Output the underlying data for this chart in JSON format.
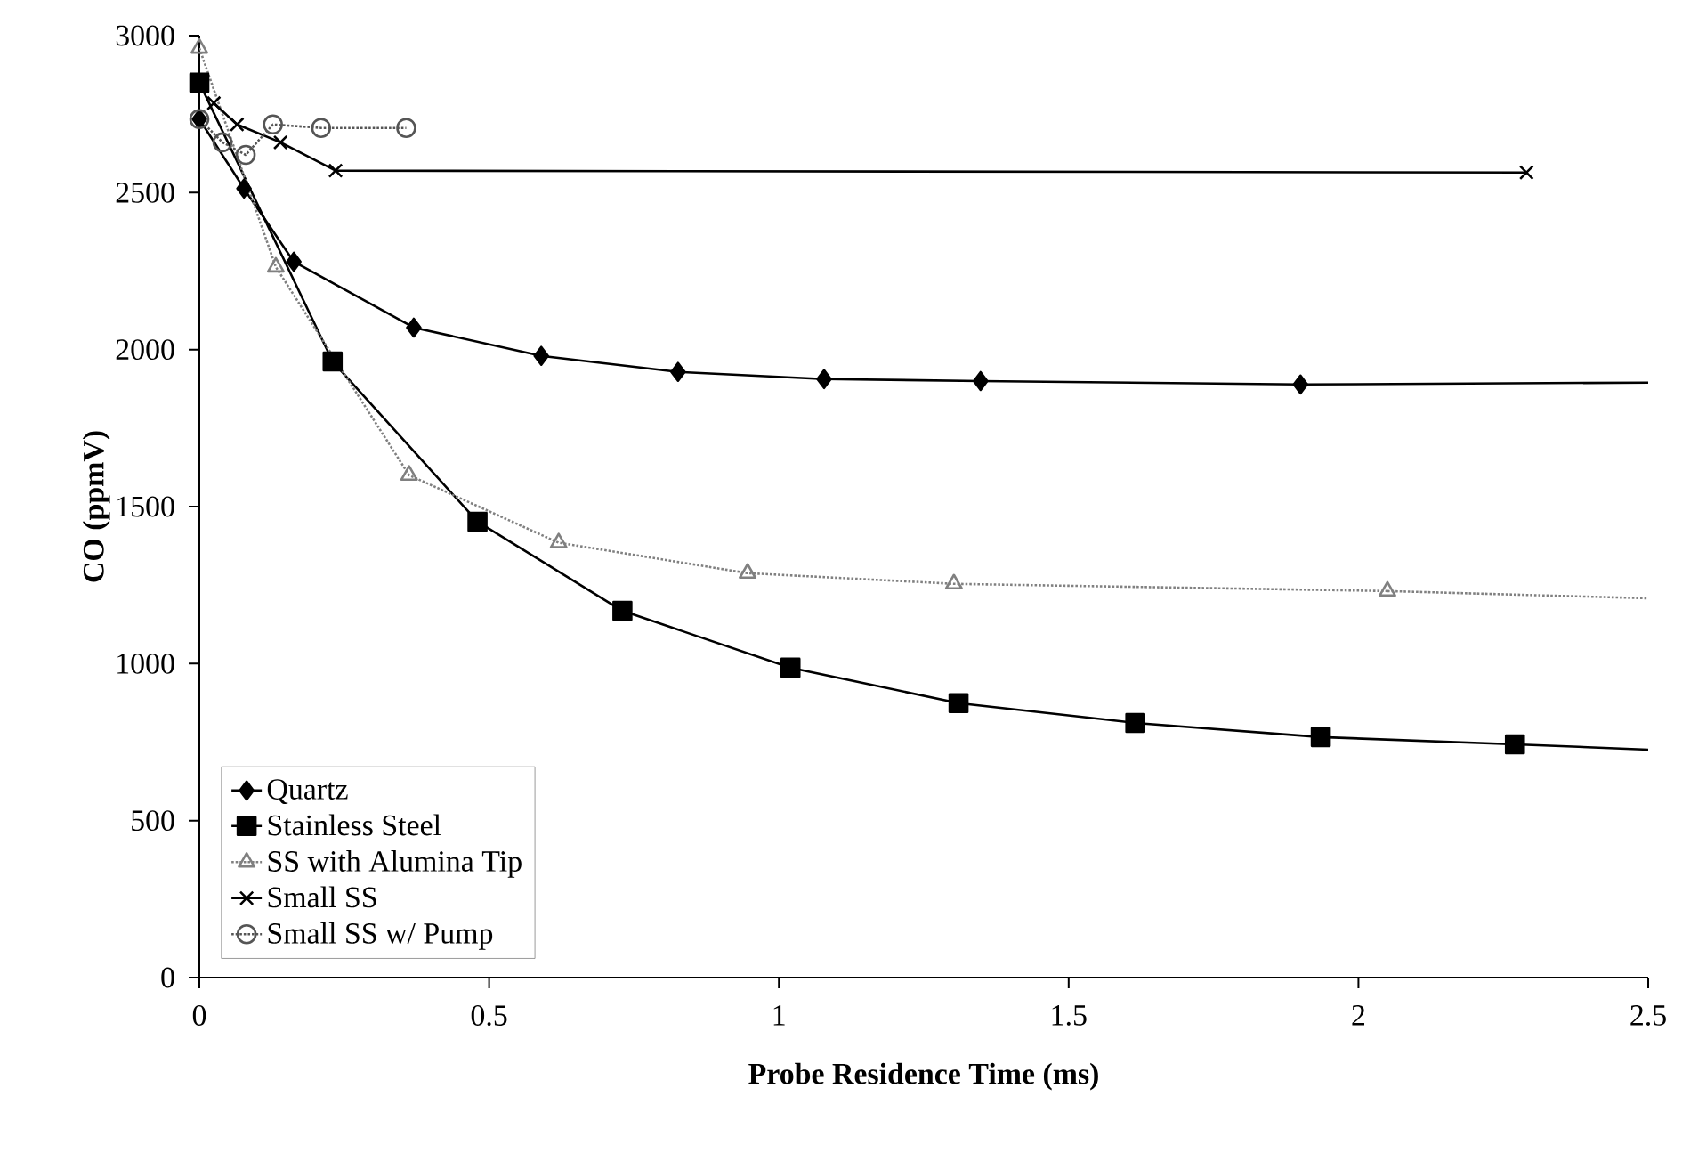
{
  "chart_data": {
    "type": "line",
    "xlabel": "Probe Residence Time (ms)",
    "ylabel": "CO (ppmV)",
    "xlim": [
      0,
      2.5
    ],
    "xticks": [
      0,
      0.5,
      1,
      1.5,
      2,
      2.5
    ],
    "ylim": [
      0,
      3000
    ],
    "yticks": [
      0,
      500,
      1000,
      1500,
      2000,
      2500,
      3000
    ],
    "grid": false,
    "legend": "bottom left",
    "series": [
      {
        "name": "Quartz",
        "color": "#000000",
        "marker": "diamond",
        "line_style": "solid",
        "x": [
          0,
          0.077,
          0.163,
          0.37,
          0.59,
          0.826,
          1.078,
          1.348,
          1.9
        ],
        "values": [
          2734,
          2513,
          2280,
          2070,
          1980,
          1929,
          1906,
          1900,
          1889
        ]
      },
      {
        "name": "Stainless Steel",
        "color": "#000000",
        "marker": "square",
        "line_style": "solid",
        "x": [
          0,
          0.23,
          0.48,
          0.73,
          1.02,
          1.31,
          1.615,
          1.935,
          2.27
        ],
        "values": [
          2850,
          1962,
          1452,
          1168,
          987,
          874,
          811,
          766,
          743
        ]
      },
      {
        "name": "SS with Alumina Tip",
        "color": "#808080",
        "marker": "triangle",
        "line_style": "dotted",
        "x": [
          0,
          0.132,
          0.362,
          0.62,
          0.946,
          1.302,
          2.05
        ],
        "values": [
          2960,
          2263,
          1600,
          1385,
          1288,
          1254,
          1231
        ]
      },
      {
        "name": "Small SS",
        "color": "#000000",
        "marker": "cross",
        "line_style": "solid",
        "x": [
          0.025,
          0.065,
          0.14,
          0.235,
          2.29
        ],
        "values": [
          2785,
          2717,
          2660,
          2570,
          2564
        ]
      },
      {
        "name": "Small SS w/ Pump",
        "color": "#555555",
        "marker": "circle",
        "line_style": "dotted",
        "x": [
          0,
          0.04,
          0.08,
          0.127,
          0.21,
          0.357
        ],
        "values": [
          2734,
          2660,
          2620,
          2717,
          2706,
          2706
        ]
      },
      {
        "color": "#000000",
        "marker": "none",
        "line_style": "solid",
        "x": [
          1.9,
          2.5
        ],
        "values": [
          1889,
          1895
        ]
      },
      {
        "color": "#000000",
        "marker": "none",
        "line_style": "solid",
        "x": [
          2.27,
          2.5
        ],
        "values": [
          743,
          726
        ]
      },
      {
        "color": "#808080",
        "marker": "none",
        "line_style": "dotted",
        "x": [
          2.05,
          2.5
        ],
        "values": [
          1231,
          1208
        ]
      }
    ]
  }
}
